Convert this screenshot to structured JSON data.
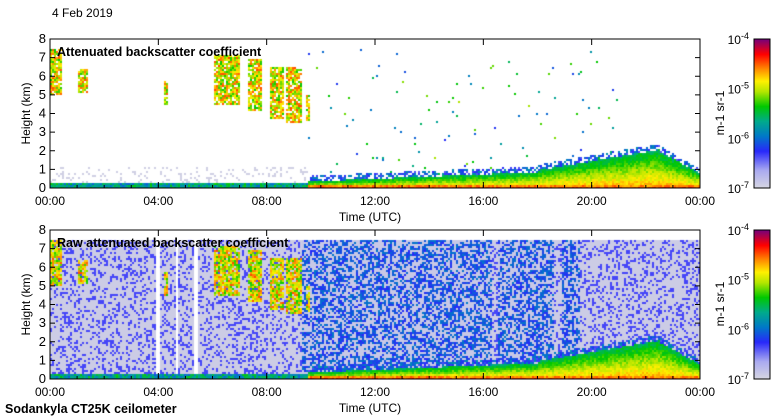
{
  "date_label": "4 Feb 2019",
  "footer": "Sodankyla CT25K ceilometer",
  "chart_data": [
    {
      "type": "heatmap",
      "title": "Attenuated backscatter coefficient",
      "xlabel": "Time (UTC)",
      "ylabel": "Height (km)",
      "xlim": [
        0,
        24
      ],
      "ylim": [
        0,
        8
      ],
      "xticks": [
        "00:00",
        "04:00",
        "08:00",
        "12:00",
        "16:00",
        "20:00",
        "00:00"
      ],
      "yticks": [
        "0",
        "1",
        "2",
        "3",
        "4",
        "5",
        "6",
        "7",
        "8"
      ],
      "colorbar": {
        "label": "m-1 sr-1",
        "ticks": [
          "10-4",
          "10-5",
          "10-6",
          "10-7"
        ],
        "range": [
          1e-07,
          0.0001
        ],
        "scale": "log"
      }
    },
    {
      "type": "heatmap",
      "title": "Raw attenuated backscatter coefficient",
      "xlabel": "Time (UTC)",
      "ylabel": "Height (km)",
      "xlim": [
        0,
        24
      ],
      "ylim": [
        0,
        8
      ],
      "xticks": [
        "00:00",
        "04:00",
        "08:00",
        "12:00",
        "16:00",
        "20:00",
        "00:00"
      ],
      "yticks": [
        "0",
        "1",
        "2",
        "3",
        "4",
        "5",
        "6",
        "7",
        "8"
      ],
      "colorbar": {
        "label": "m-1 sr-1",
        "ticks": [
          "10-4",
          "10-5",
          "10-6",
          "10-7"
        ],
        "range": [
          1e-07,
          0.0001
        ],
        "scale": "log"
      }
    }
  ]
}
